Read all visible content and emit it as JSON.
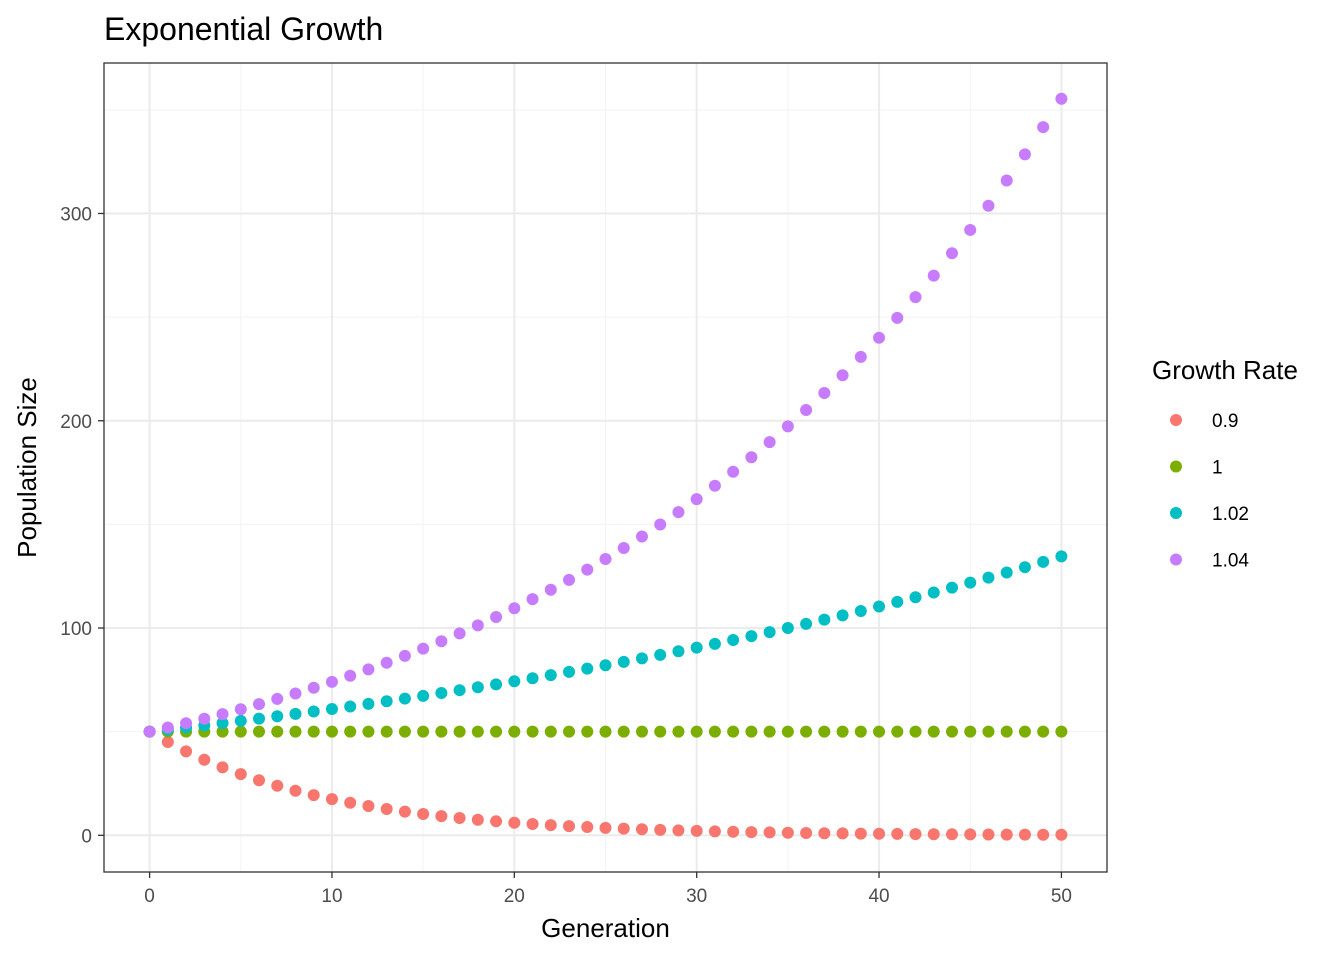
{
  "chart_data": {
    "type": "scatter",
    "title": "Exponential Growth",
    "xlabel": "Generation",
    "ylabel": "Population Size",
    "xlim": [
      -2.5,
      52.5
    ],
    "ylim": [
      -17.7,
      372.6
    ],
    "x_ticks": [
      0,
      10,
      20,
      30,
      40,
      50
    ],
    "y_ticks": [
      0,
      100,
      200,
      300
    ],
    "x_minor_ticks": [
      5,
      15,
      25,
      35,
      45
    ],
    "y_minor_ticks": [
      50,
      150,
      250,
      350
    ],
    "grid": true,
    "legend_title": "Growth Rate",
    "legend_position": "right",
    "initial_population": 50,
    "series": [
      {
        "name": "0.9",
        "rate": 0.9,
        "color": "#F8766D"
      },
      {
        "name": "1",
        "rate": 1.0,
        "color": "#7CAE00"
      },
      {
        "name": "1.02",
        "rate": 1.02,
        "color": "#00BFC4"
      },
      {
        "name": "1.04",
        "rate": 1.04,
        "color": "#C77CFF"
      }
    ],
    "x": [
      0,
      1,
      2,
      3,
      4,
      5,
      6,
      7,
      8,
      9,
      10,
      11,
      12,
      13,
      14,
      15,
      16,
      17,
      18,
      19,
      20,
      21,
      22,
      23,
      24,
      25,
      26,
      27,
      28,
      29,
      30,
      31,
      32,
      33,
      34,
      35,
      36,
      37,
      38,
      39,
      40,
      41,
      42,
      43,
      44,
      45,
      46,
      47,
      48,
      49,
      50
    ]
  }
}
